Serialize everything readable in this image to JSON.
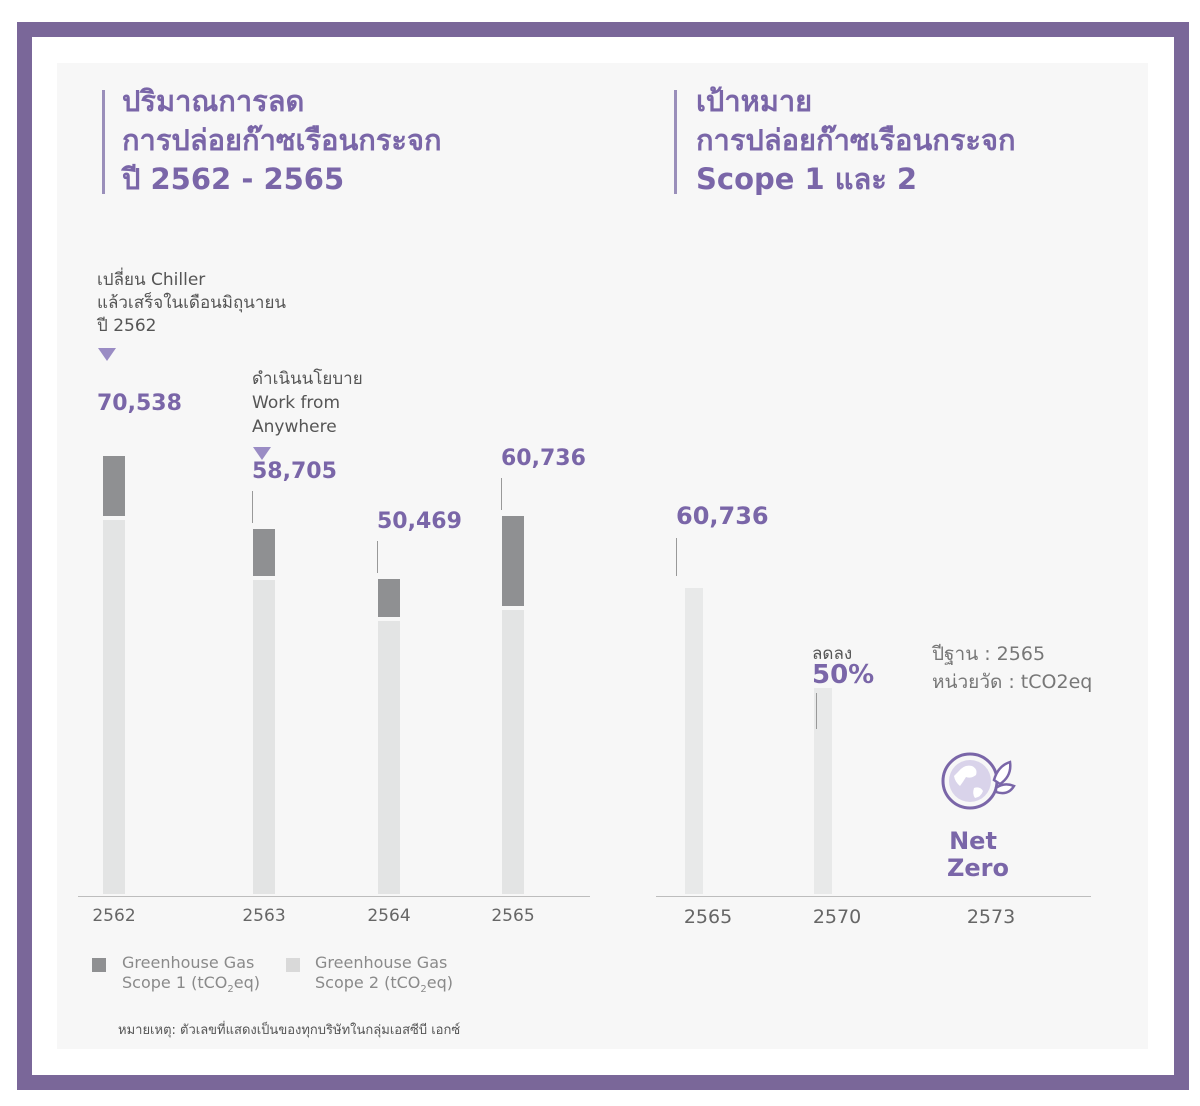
{
  "left_heading": {
    "line1": "ปริมาณการลด",
    "line2": "การปล่อยก๊าซเรือนกระจก",
    "line3": "ปี 2562 - 2565"
  },
  "right_heading": {
    "line1": "เป้าหมาย",
    "line2": "การปล่อยก๊าซเรือนกระจก",
    "line3": "Scope 1 และ 2"
  },
  "annotations": {
    "chiller": [
      "เปลี่ยน Chiller",
      "แล้วเสร็จในเดือนมิถุนายน",
      "ปี 2562"
    ],
    "wfa": [
      "ดำเนินนโยบาย",
      "Work from",
      "Anywhere"
    ]
  },
  "legend": {
    "scope1": {
      "line1": "Greenhouse Gas",
      "line2_pre": "Scope 1 (tCO",
      "sub": "2",
      "line2_post": "eq)"
    },
    "scope2": {
      "line1": "Greenhouse Gas",
      "line2_pre": "Scope 2 (tCO",
      "sub": "2",
      "line2_post": "eq)"
    }
  },
  "footnote": "หมายเหตุ: ตัวเลขที่แสดงเป็นของทุกบริษัทในกลุ่มเอสซีบี เอกซ์",
  "target_info": {
    "reduce_label": "ลดลง",
    "reduce_pct": "50%",
    "base_year": "ปีฐาน : 2565",
    "unit": "หน่วยวัด : tCO2eq",
    "net_zero_line1": "Net",
    "net_zero_line2": "Zero"
  },
  "colors": {
    "accent": "#7a66a8",
    "frame": "#7a6799",
    "scope1": "#8f9092",
    "scope2": "#e3e4e4"
  },
  "chart_data": [
    {
      "type": "bar",
      "stacked": true,
      "categories": [
        "2562",
        "2563",
        "2564",
        "2565"
      ],
      "series": [
        {
          "name": "Greenhouse Gas Scope 1 (tCO2eq)",
          "values": [
            9800,
            7700,
            6100,
            14500
          ]
        },
        {
          "name": "Greenhouse Gas Scope 2 (tCO2eq)",
          "values": [
            60738,
            51005,
            44369,
            46236
          ]
        }
      ],
      "totals": [
        "70,538",
        "58,705",
        "50,469",
        "60,736"
      ],
      "total_values": [
        70538,
        58705,
        50469,
        60736
      ],
      "ylim": [
        0,
        75000
      ],
      "legend": "bottom"
    },
    {
      "type": "bar",
      "categories": [
        "2565",
        "2570",
        "2573"
      ],
      "values": [
        60736,
        30368,
        0
      ],
      "labels": [
        "60,736",
        "50%",
        "Net Zero"
      ],
      "ylim": [
        0,
        75000
      ]
    }
  ]
}
